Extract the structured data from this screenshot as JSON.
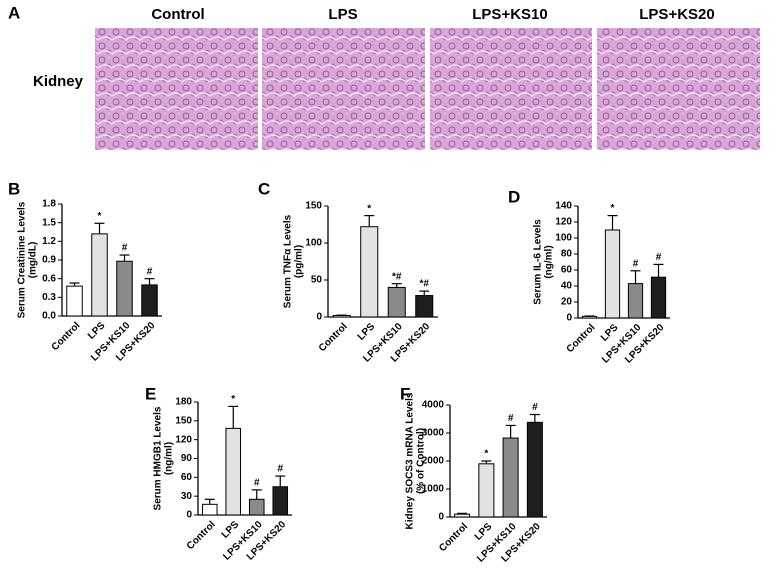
{
  "figure": {
    "panel": "A",
    "columns": [
      "Control",
      "LPS",
      "LPS+KS10",
      "LPS+KS20"
    ],
    "row_label": "Kidney"
  },
  "chart_data": [
    {
      "type": "bar",
      "panel": "B",
      "ylabel": [
        "Serum Creatinine Levels",
        "(mg/dL)"
      ],
      "categories": [
        "Control",
        "LPS",
        "LPS+KS10",
        "LPS+KS20"
      ],
      "values": [
        0.48,
        1.32,
        0.88,
        0.5
      ],
      "errors": [
        0.05,
        0.17,
        0.1,
        0.1
      ],
      "markers": [
        null,
        "*",
        "#",
        "#"
      ],
      "colors": [
        "#ffffff",
        "#e2e2e2",
        "#8a8a8a",
        "#1e1e1e"
      ],
      "ylim": [
        0,
        1.8
      ],
      "yticks": [
        {
          "value": 0,
          "label": "0.0"
        },
        0.3,
        0.6,
        0.9,
        1.2,
        1.5,
        1.8
      ]
    },
    {
      "type": "bar",
      "panel": "C",
      "ylabel": [
        "Serum TNFα Levels",
        "(pg/ml)"
      ],
      "categories": [
        "Control",
        "LPS",
        "LPS+KS10",
        "LPS+KS20"
      ],
      "values": [
        2,
        122,
        40,
        29
      ],
      "errors": [
        0.5,
        15,
        5,
        6
      ],
      "markers": [
        null,
        "*",
        "*#",
        "*#"
      ],
      "colors": [
        "#ffffff",
        "#e2e2e2",
        "#8a8a8a",
        "#1e1e1e"
      ],
      "ylim": [
        0,
        150
      ],
      "yticks": [
        0,
        50,
        100,
        150
      ]
    },
    {
      "type": "bar",
      "panel": "D",
      "ylabel": [
        "Serum IL-6 Levels",
        "(ng/ml)"
      ],
      "categories": [
        "Control",
        "LPS",
        "LPS+KS10",
        "LPS+KS20"
      ],
      "values": [
        2,
        110,
        43,
        51
      ],
      "errors": [
        0.5,
        18,
        16,
        16
      ],
      "markers": [
        null,
        "*",
        "#",
        "#"
      ],
      "colors": [
        "#ffffff",
        "#e2e2e2",
        "#8a8a8a",
        "#1e1e1e"
      ],
      "ylim": [
        0,
        140
      ],
      "yticks": [
        0,
        20,
        40,
        60,
        80,
        100,
        120,
        140
      ]
    },
    {
      "type": "bar",
      "panel": "E",
      "ylabel": [
        "Serum HMGB1 Levels",
        "(ng/ml)"
      ],
      "categories": [
        "Control",
        "LPS",
        "LPS+KS10",
        "LPS+KS20"
      ],
      "values": [
        17,
        138,
        25,
        45
      ],
      "errors": [
        8,
        35,
        15,
        17
      ],
      "markers": [
        null,
        "*",
        "#",
        "#"
      ],
      "colors": [
        "#ffffff",
        "#e2e2e2",
        "#8a8a8a",
        "#1e1e1e"
      ],
      "ylim": [
        0,
        180
      ],
      "yticks": [
        0,
        30,
        60,
        90,
        120,
        150,
        180
      ]
    },
    {
      "type": "bar",
      "panel": "F",
      "ylabel": [
        "Kidney SOCS3 mRNA Levels",
        "(% of Control)"
      ],
      "categories": [
        "Control",
        "LPS",
        "LPS+KS10",
        "LPS+KS20"
      ],
      "values": [
        100,
        1900,
        2820,
        3380
      ],
      "errors": [
        30,
        100,
        450,
        280
      ],
      "markers": [
        null,
        "*",
        "#",
        "#"
      ],
      "colors": [
        "#ffffff",
        "#e2e2e2",
        "#8a8a8a",
        "#1e1e1e"
      ],
      "ylim": [
        0,
        4000
      ],
      "yticks": [
        0,
        1000,
        2000,
        3000,
        4000
      ]
    }
  ]
}
